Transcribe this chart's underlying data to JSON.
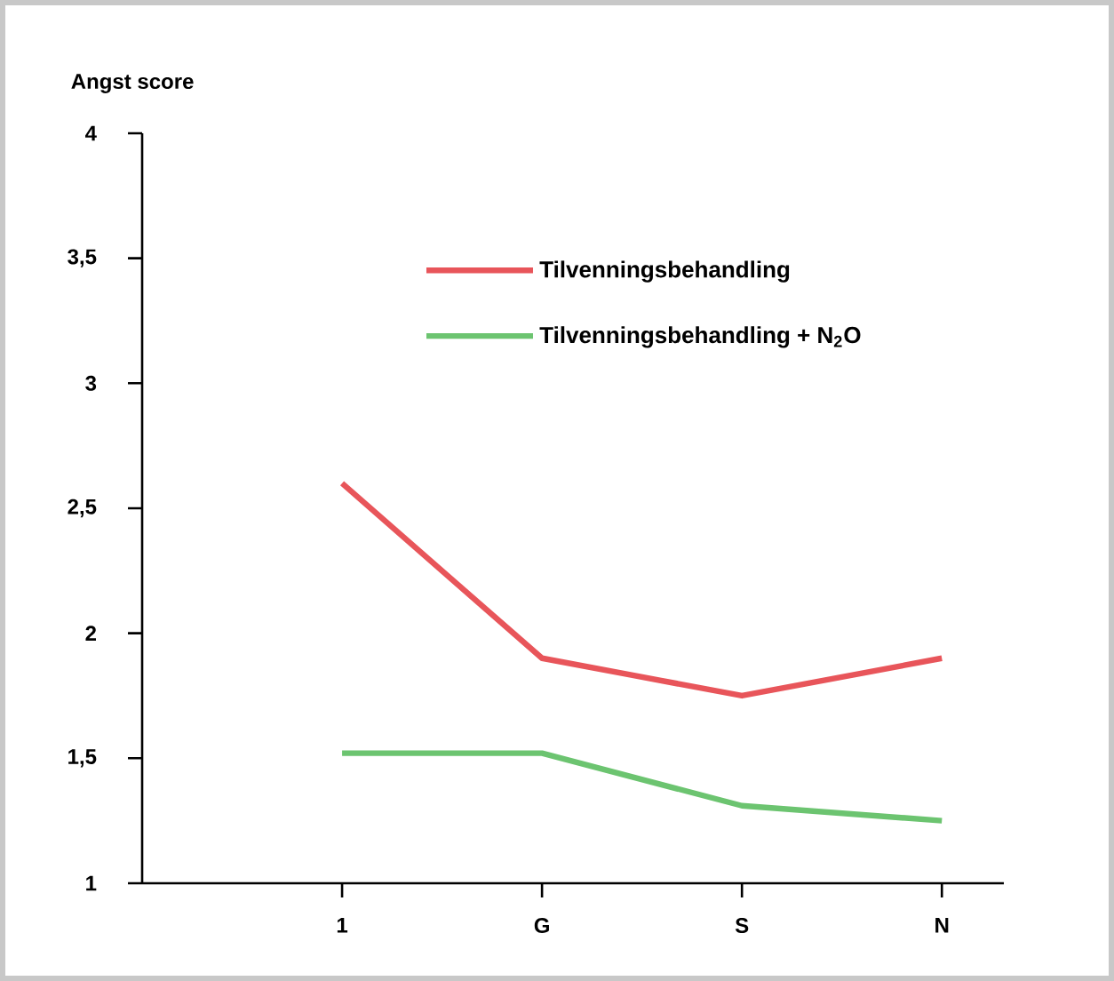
{
  "chart_data": {
    "type": "line",
    "ylabel": "Angst score",
    "categories": [
      "1",
      "G",
      "S",
      "N"
    ],
    "series": [
      {
        "name": "Tilvenningsbehandling",
        "color": "#e8555a",
        "values": [
          2.6,
          1.9,
          1.75,
          1.9
        ]
      },
      {
        "name": "Tilvenningsbehandling +  N$_{2}$O",
        "color": "#6cc470",
        "values": [
          1.52,
          1.52,
          1.31,
          1.25
        ]
      }
    ],
    "ylim": [
      1,
      4
    ],
    "yticks": [
      1,
      {
        "value": 1.5,
        "label": "1,5"
      },
      2,
      {
        "value": 2.5,
        "label": "2,5"
      },
      3,
      {
        "value": 3.5,
        "label": "3,5"
      },
      4
    ],
    "legend": "top right",
    "line_style": "solid",
    "marker": "none",
    "grid": false
  }
}
